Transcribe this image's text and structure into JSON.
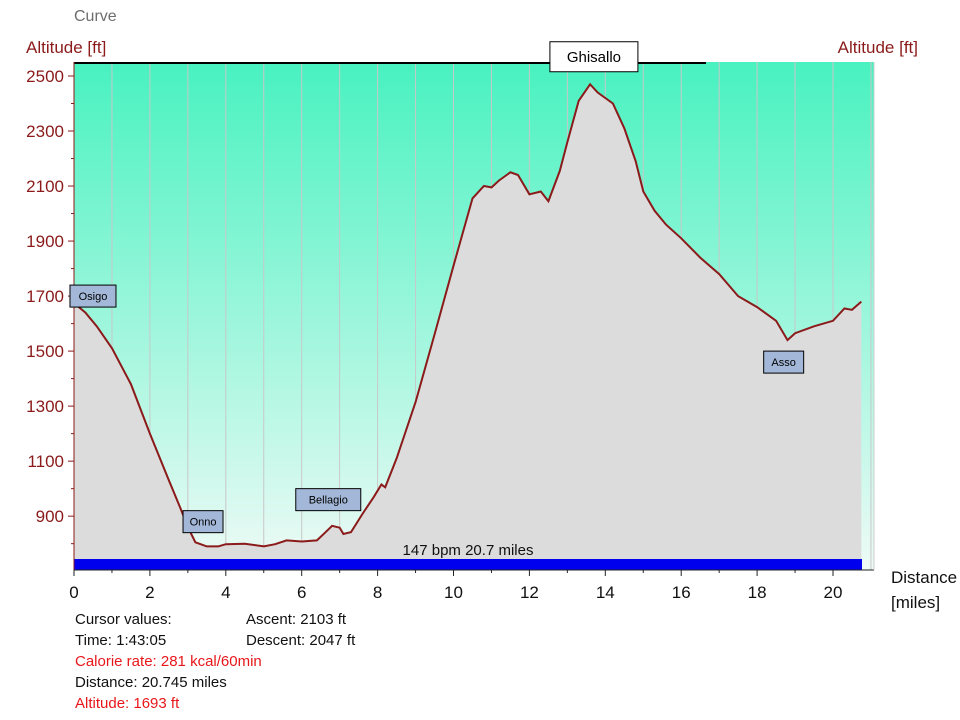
{
  "chart_data": {
    "type": "area",
    "title": "Curve",
    "ylabel_left": "Altitude [ft]",
    "ylabel_right": "Altitude [ft]",
    "xlabel": [
      "Distance",
      "[miles]"
    ],
    "xlim": [
      0,
      20.745
    ],
    "ylim": [
      720,
      2540
    ],
    "x_ticks": [
      0,
      2,
      4,
      6,
      8,
      10,
      12,
      14,
      16,
      18,
      20
    ],
    "y_ticks": [
      900,
      1100,
      1300,
      1500,
      1700,
      1900,
      2100,
      2300,
      2500
    ],
    "grid": "vertical",
    "series": [
      {
        "x": [
          0,
          0.3,
          0.6,
          1.0,
          1.5,
          2.0,
          2.5,
          2.8,
          3.0,
          3.2,
          3.5,
          3.8,
          4.0,
          4.5,
          5.0,
          5.3,
          5.6,
          6.0,
          6.4,
          6.6,
          6.8,
          7.0,
          7.1,
          7.3,
          7.6,
          7.9,
          8.1,
          8.2,
          8.5,
          9.0,
          9.5,
          10.0,
          10.5,
          10.8,
          11.0,
          11.2,
          11.5,
          11.7,
          12.0,
          12.3,
          12.5,
          12.8,
          13.0,
          13.3,
          13.6,
          13.8,
          14.0,
          14.2,
          14.5,
          14.8,
          15.0,
          15.3,
          15.6,
          16.0,
          16.5,
          17.0,
          17.5,
          18.0,
          18.5,
          18.8,
          19.0,
          19.5,
          20.0,
          20.3,
          20.5,
          20.745
        ],
        "values": [
          1675,
          1640,
          1590,
          1510,
          1380,
          1200,
          1030,
          930,
          860,
          805,
          790,
          790,
          798,
          800,
          790,
          798,
          812,
          808,
          812,
          838,
          865,
          858,
          835,
          842,
          908,
          970,
          1015,
          1005,
          1110,
          1315,
          1560,
          1810,
          2055,
          2100,
          2095,
          2120,
          2150,
          2140,
          2070,
          2080,
          2045,
          2155,
          2260,
          2410,
          2470,
          2440,
          2420,
          2400,
          2310,
          2190,
          2080,
          2010,
          1960,
          1910,
          1840,
          1780,
          1700,
          1660,
          1610,
          1540,
          1565,
          1590,
          1610,
          1655,
          1650,
          1680
        ]
      }
    ],
    "annotations": [
      {
        "label": "Osigo",
        "x": 0.5,
        "y": 1700
      },
      {
        "label": "Onno",
        "x": 3.4,
        "y": 880
      },
      {
        "label": "Bellagio",
        "x": 6.7,
        "y": 960
      },
      {
        "label": "Ghisallo",
        "x": 13.7,
        "y": 2570
      },
      {
        "label": "Asso",
        "x": 18.7,
        "y": 1460
      }
    ],
    "bar_label": "147 bpm 20.7 miles"
  },
  "stats": {
    "cursor_values": "Cursor values:",
    "time": "Time: 1:43:05",
    "calorie_rate": "Calorie rate: 281 kcal/60min",
    "distance": "Distance: 20.745 miles",
    "altitude": "Altitude: 1693 ft",
    "ascent": "Ascent: 2103 ft",
    "descent": "Descent: 2047 ft"
  },
  "colors": {
    "sky_top": "#48f2c0",
    "sky_bottom": "#eefaf6",
    "terrain": "#dcdcdc",
    "profile_line": "#8b1a1a",
    "axis_text": "#8b1a1a",
    "bar": "#0000ee",
    "stat_red": "#e8171b",
    "label_box": "#a3b8d8"
  }
}
